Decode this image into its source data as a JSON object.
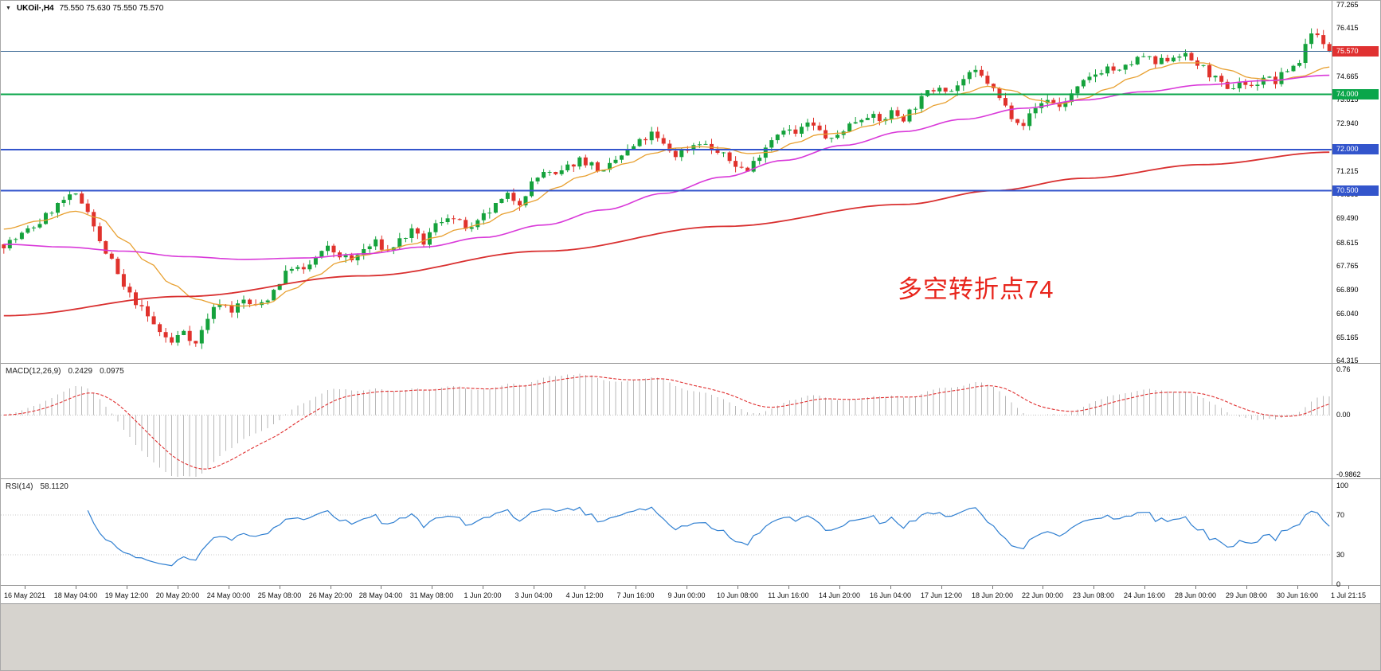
{
  "symbol_bar": {
    "dropdown_icon": "▼",
    "symbol": "UKOil·,H4",
    "ohlc_text": "75.550 75.630 75.550 75.570"
  },
  "annotation": {
    "text": "多空转折点74",
    "color": "#e8251c"
  },
  "chart_data": [
    {
      "type": "candlestick",
      "symbol": "UKOil",
      "timeframe": "H4",
      "ohlc": {
        "open": 75.55,
        "high": 75.63,
        "low": 75.55,
        "close": 75.57
      },
      "price_range": [
        64.23,
        77.41
      ],
      "candles_count": 222,
      "up_color": "#15a23c",
      "down_color": "#e0322c",
      "volatility": {
        "body": 0.3,
        "wick": 0.2
      },
      "close_waypoints": [
        [
          0,
          68.55
        ],
        [
          2,
          68.75
        ],
        [
          4,
          69.05
        ],
        [
          6,
          69.35
        ],
        [
          8,
          69.8
        ],
        [
          10,
          70.15
        ],
        [
          12,
          70.3
        ],
        [
          14,
          69.85
        ],
        [
          16,
          68.6
        ],
        [
          18,
          67.9
        ],
        [
          20,
          66.95
        ],
        [
          22,
          66.45
        ],
        [
          24,
          65.9
        ],
        [
          26,
          65.35
        ],
        [
          28,
          64.95
        ],
        [
          30,
          65.45
        ],
        [
          32,
          64.9
        ],
        [
          34,
          65.9
        ],
        [
          36,
          66.45
        ],
        [
          38,
          66.15
        ],
        [
          40,
          66.5
        ],
        [
          42,
          66.25
        ],
        [
          44,
          66.6
        ],
        [
          46,
          67.2
        ],
        [
          48,
          67.75
        ],
        [
          50,
          67.55
        ],
        [
          52,
          68.05
        ],
        [
          54,
          68.4
        ],
        [
          56,
          68.15
        ],
        [
          58,
          67.95
        ],
        [
          60,
          68.35
        ],
        [
          62,
          68.6
        ],
        [
          64,
          68.3
        ],
        [
          66,
          68.7
        ],
        [
          68,
          69.0
        ],
        [
          70,
          68.6
        ],
        [
          72,
          69.25
        ],
        [
          74,
          69.6
        ],
        [
          76,
          69.3
        ],
        [
          78,
          69.05
        ],
        [
          80,
          69.55
        ],
        [
          82,
          69.95
        ],
        [
          84,
          70.3
        ],
        [
          86,
          70.1
        ],
        [
          88,
          70.75
        ],
        [
          90,
          71.2
        ],
        [
          92,
          71.0
        ],
        [
          94,
          71.35
        ],
        [
          96,
          71.65
        ],
        [
          98,
          71.45
        ],
        [
          100,
          71.15
        ],
        [
          102,
          71.6
        ],
        [
          104,
          71.95
        ],
        [
          106,
          72.25
        ],
        [
          108,
          72.55
        ],
        [
          110,
          72.15
        ],
        [
          112,
          71.8
        ],
        [
          114,
          72.05
        ],
        [
          116,
          72.3
        ],
        [
          118,
          72.0
        ],
        [
          120,
          71.75
        ],
        [
          122,
          71.45
        ],
        [
          124,
          71.2
        ],
        [
          126,
          71.85
        ],
        [
          128,
          72.4
        ],
        [
          130,
          72.8
        ],
        [
          132,
          72.55
        ],
        [
          134,
          72.95
        ],
        [
          136,
          72.65
        ],
        [
          138,
          72.3
        ],
        [
          140,
          72.75
        ],
        [
          142,
          73.05
        ],
        [
          144,
          73.3
        ],
        [
          146,
          73.0
        ],
        [
          148,
          73.35
        ],
        [
          150,
          73.15
        ],
        [
          152,
          73.6
        ],
        [
          154,
          74.05
        ],
        [
          156,
          74.35
        ],
        [
          158,
          74.15
        ],
        [
          160,
          74.55
        ],
        [
          162,
          74.8
        ],
        [
          164,
          74.45
        ],
        [
          166,
          73.85
        ],
        [
          168,
          73.25
        ],
        [
          170,
          72.95
        ],
        [
          172,
          73.5
        ],
        [
          174,
          73.85
        ],
        [
          176,
          73.55
        ],
        [
          178,
          74.0
        ],
        [
          180,
          74.4
        ],
        [
          182,
          74.75
        ],
        [
          184,
          75.0
        ],
        [
          186,
          74.8
        ],
        [
          188,
          75.15
        ],
        [
          190,
          75.4
        ],
        [
          192,
          75.1
        ],
        [
          194,
          75.3
        ],
        [
          196,
          75.5
        ],
        [
          198,
          75.25
        ],
        [
          200,
          74.95
        ],
        [
          202,
          74.55
        ],
        [
          204,
          74.1
        ],
        [
          206,
          74.5
        ],
        [
          208,
          74.25
        ],
        [
          210,
          74.65
        ],
        [
          212,
          74.45
        ],
        [
          214,
          74.9
        ],
        [
          216,
          75.2
        ],
        [
          217,
          75.8
        ],
        [
          218,
          76.35
        ],
        [
          219,
          76.1
        ],
        [
          220,
          75.75
        ],
        [
          221,
          75.57
        ]
      ],
      "moving_averages": [
        {
          "name": "ma-fast",
          "color": "#e8a030",
          "width": 1.3,
          "waypoints": [
            [
              0,
              69.1
            ],
            [
              6,
              69.4
            ],
            [
              12,
              69.75
            ],
            [
              16,
              69.5
            ],
            [
              20,
              68.7
            ],
            [
              24,
              67.9
            ],
            [
              28,
              67.1
            ],
            [
              32,
              66.55
            ],
            [
              36,
              66.35
            ],
            [
              40,
              66.3
            ],
            [
              44,
              66.4
            ],
            [
              48,
              66.9
            ],
            [
              52,
              67.4
            ],
            [
              56,
              67.9
            ],
            [
              60,
              68.15
            ],
            [
              64,
              68.35
            ],
            [
              68,
              68.55
            ],
            [
              72,
              68.8
            ],
            [
              76,
              69.1
            ],
            [
              80,
              69.3
            ],
            [
              84,
              69.7
            ],
            [
              88,
              70.1
            ],
            [
              92,
              70.6
            ],
            [
              96,
              71.0
            ],
            [
              100,
              71.25
            ],
            [
              104,
              71.5
            ],
            [
              108,
              71.85
            ],
            [
              112,
              72.05
            ],
            [
              116,
              72.1
            ],
            [
              120,
              72.05
            ],
            [
              124,
              71.85
            ],
            [
              128,
              71.9
            ],
            [
              132,
              72.25
            ],
            [
              136,
              72.55
            ],
            [
              140,
              72.6
            ],
            [
              144,
              72.85
            ],
            [
              148,
              73.1
            ],
            [
              152,
              73.3
            ],
            [
              156,
              73.65
            ],
            [
              160,
              74.05
            ],
            [
              164,
              74.3
            ],
            [
              168,
              74.15
            ],
            [
              172,
              73.8
            ],
            [
              176,
              73.65
            ],
            [
              180,
              73.85
            ],
            [
              184,
              74.2
            ],
            [
              188,
              74.6
            ],
            [
              192,
              74.95
            ],
            [
              196,
              75.15
            ],
            [
              200,
              75.15
            ],
            [
              204,
              74.9
            ],
            [
              208,
              74.6
            ],
            [
              212,
              74.5
            ],
            [
              216,
              74.65
            ],
            [
              221,
              75.0
            ]
          ]
        },
        {
          "name": "ma-medium",
          "color": "#d939d9",
          "width": 1.6,
          "waypoints": [
            [
              0,
              68.55
            ],
            [
              10,
              68.45
            ],
            [
              20,
              68.3
            ],
            [
              30,
              68.1
            ],
            [
              40,
              68.0
            ],
            [
              50,
              68.05
            ],
            [
              60,
              68.2
            ],
            [
              70,
              68.45
            ],
            [
              80,
              68.8
            ],
            [
              90,
              69.25
            ],
            [
              100,
              69.8
            ],
            [
              110,
              70.4
            ],
            [
              120,
              71.0
            ],
            [
              130,
              71.6
            ],
            [
              140,
              72.15
            ],
            [
              150,
              72.65
            ],
            [
              160,
              73.1
            ],
            [
              170,
              73.5
            ],
            [
              180,
              73.8
            ],
            [
              190,
              74.1
            ],
            [
              200,
              74.35
            ],
            [
              210,
              74.5
            ],
            [
              221,
              74.7
            ]
          ]
        },
        {
          "name": "ma-slow",
          "color": "#d93030",
          "width": 1.8,
          "waypoints": [
            [
              0,
              65.95
            ],
            [
              30,
              66.65
            ],
            [
              60,
              67.4
            ],
            [
              90,
              68.3
            ],
            [
              120,
              69.2
            ],
            [
              150,
              70.0
            ],
            [
              165,
              70.5
            ],
            [
              180,
              70.95
            ],
            [
              200,
              71.45
            ],
            [
              221,
              71.9
            ]
          ]
        }
      ],
      "levels": [
        {
          "name": "line-75-57",
          "price": 75.57,
          "color": "#3d6a96",
          "width": 1.4
        },
        {
          "name": "line-74-00",
          "price": 74.0,
          "color": "#0aa64a",
          "width": 2
        },
        {
          "name": "line-72-00",
          "price": 72.0,
          "color": "#3355cc",
          "width": 2
        },
        {
          "name": "line-70-50",
          "price": 70.5,
          "color": "#3355cc",
          "width": 2
        }
      ],
      "price_badges": [
        {
          "name": "current-price",
          "label": "75.570",
          "price": 75.57,
          "color": "#e03131"
        },
        {
          "name": "level-74",
          "label": "74.000",
          "price": 74.0,
          "color": "#0aa64a"
        },
        {
          "name": "level-72",
          "label": "72.000",
          "price": 72.0,
          "color": "#3355cc"
        },
        {
          "name": "level-70-50",
          "label": "70.500",
          "price": 70.5,
          "color": "#3355cc"
        }
      ],
      "y_tick_labels": [
        77.265,
        76.415,
        74.665,
        73.815,
        72.94,
        71.215,
        70.365,
        69.49,
        68.615,
        67.765,
        66.89,
        66.04,
        65.165,
        64.315
      ],
      "x_tick_labels": [
        "16 May 2021",
        "18 May 04:00",
        "19 May 12:00",
        "20 May 20:00",
        "24 May 00:00",
        "25 May 08:00",
        "26 May 20:00",
        "28 May 04:00",
        "31 May 08:00",
        "1 Jun 20:00",
        "3 Jun 04:00",
        "4 Jun 12:00",
        "7 Jun 16:00",
        "9 Jun 00:00",
        "10 Jun 08:00",
        "11 Jun 16:00",
        "14 Jun 20:00",
        "16 Jun 04:00",
        "17 Jun 12:00",
        "18 Jun 20:00",
        "22 Jun 00:00",
        "23 Jun 08:00",
        "24 Jun 16:00",
        "28 Jun 00:00",
        "29 Jun 08:00",
        "30 Jun 16:00",
        "1 Jul 21:15"
      ]
    },
    {
      "type": "macd",
      "label": "MACD(12,26,9)",
      "display_macd": "0.2429",
      "display_signal": "0.0975",
      "macd_value": 0.2429,
      "signal_value": 0.0975,
      "params": [
        12,
        26,
        9
      ],
      "range": [
        -1.05,
        0.85
      ],
      "histogram_color": "#b8b8b8",
      "signal_color": "#e03030",
      "axis_ticks": [
        {
          "value": 0.76,
          "label": "0.76"
        },
        {
          "value": 0,
          "label": "0.00"
        },
        {
          "value": -0.9862,
          "label": "-0.9862"
        }
      ]
    },
    {
      "type": "rsi",
      "label": "RSI(14)",
      "display_value": "58.1120",
      "value": 58.112,
      "period": 14,
      "levels": [
        70,
        30
      ],
      "line_color": "#2f7fd1",
      "axis_ticks": [
        {
          "value": 100,
          "label": "100"
        },
        {
          "value": 70,
          "label": "70"
        },
        {
          "value": 30,
          "label": "30"
        },
        {
          "value": 0,
          "label": "0"
        }
      ]
    }
  ]
}
